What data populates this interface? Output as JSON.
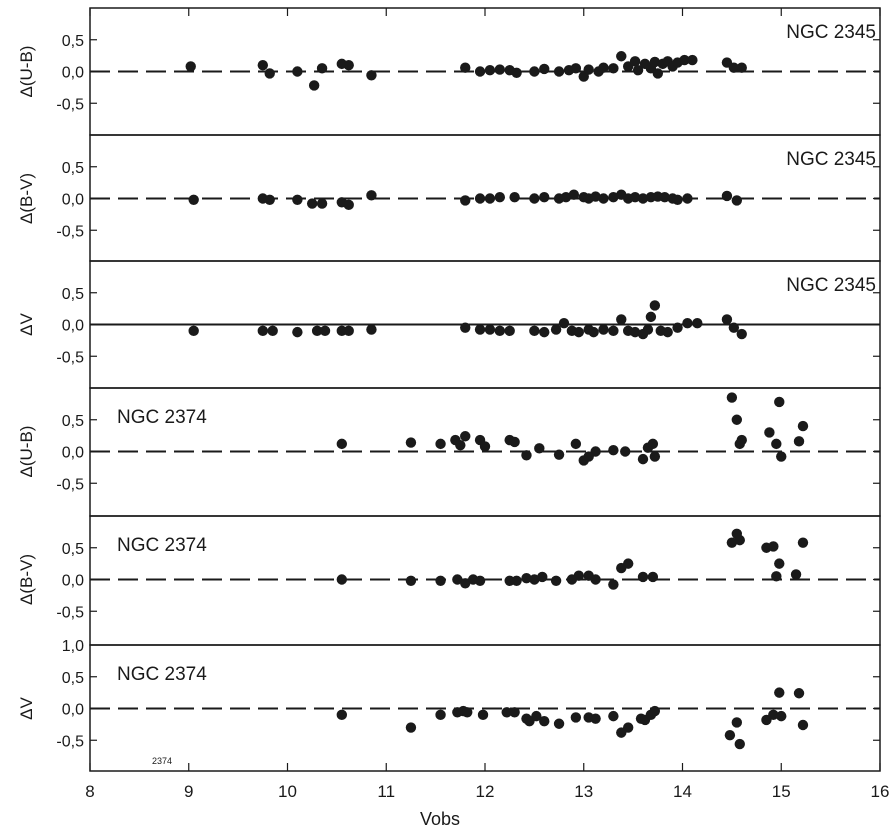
{
  "chart_data": {
    "type": "scatter",
    "x_axis": {
      "label": "Vobs",
      "ticks": [
        8,
        9,
        10,
        11,
        12,
        13,
        14,
        15,
        16
      ],
      "tick_labels": [
        "8",
        "9",
        "10",
        "11",
        "12",
        "13",
        "14",
        "15",
        "16"
      ],
      "range": [
        8,
        16
      ]
    },
    "y_tick_labels": [
      "0,5",
      "0,0",
      "-0,5"
    ],
    "top_tick_label_panel5": "1,0",
    "note_text": "2374",
    "panels": [
      {
        "id": "ngc2345-ub",
        "ylabel": "Δ(U-B)",
        "cluster": "NGC 2345",
        "label_side": "right",
        "ylim": [
          -1.0,
          1.0
        ],
        "reference_line": "dashed",
        "points": [
          [
            9.02,
            0.08
          ],
          [
            9.75,
            0.1
          ],
          [
            9.82,
            -0.03
          ],
          [
            10.1,
            0.0
          ],
          [
            10.27,
            -0.22
          ],
          [
            10.35,
            0.05
          ],
          [
            10.55,
            0.12
          ],
          [
            10.62,
            0.1
          ],
          [
            10.85,
            -0.06
          ],
          [
            11.8,
            0.06
          ],
          [
            11.95,
            0.0
          ],
          [
            12.05,
            0.02
          ],
          [
            12.15,
            0.03
          ],
          [
            12.25,
            0.02
          ],
          [
            12.32,
            -0.02
          ],
          [
            12.5,
            0.0
          ],
          [
            12.6,
            0.04
          ],
          [
            12.75,
            0.0
          ],
          [
            12.85,
            0.02
          ],
          [
            12.92,
            0.05
          ],
          [
            13.0,
            -0.08
          ],
          [
            13.05,
            0.03
          ],
          [
            13.15,
            0.0
          ],
          [
            13.2,
            0.06
          ],
          [
            13.3,
            0.05
          ],
          [
            13.38,
            0.24
          ],
          [
            13.45,
            0.08
          ],
          [
            13.52,
            0.16
          ],
          [
            13.55,
            0.02
          ],
          [
            13.62,
            0.12
          ],
          [
            13.68,
            0.05
          ],
          [
            13.72,
            0.15
          ],
          [
            13.75,
            -0.03
          ],
          [
            13.8,
            0.12
          ],
          [
            13.85,
            0.16
          ],
          [
            13.9,
            0.08
          ],
          [
            13.95,
            0.14
          ],
          [
            14.02,
            0.18
          ],
          [
            14.1,
            0.18
          ],
          [
            14.45,
            0.14
          ],
          [
            14.52,
            0.06
          ],
          [
            14.6,
            0.06
          ]
        ]
      },
      {
        "id": "ngc2345-bv",
        "ylabel": "Δ(B-V)",
        "cluster": "NGC 2345",
        "label_side": "right",
        "ylim": [
          -1.0,
          1.0
        ],
        "reference_line": "dashed",
        "points": [
          [
            9.05,
            -0.02
          ],
          [
            9.75,
            0.0
          ],
          [
            9.82,
            -0.02
          ],
          [
            10.1,
            -0.02
          ],
          [
            10.25,
            -0.08
          ],
          [
            10.35,
            -0.08
          ],
          [
            10.55,
            -0.06
          ],
          [
            10.62,
            -0.1
          ],
          [
            10.85,
            0.05
          ],
          [
            11.8,
            -0.03
          ],
          [
            11.95,
            0.0
          ],
          [
            12.05,
            0.0
          ],
          [
            12.15,
            0.02
          ],
          [
            12.3,
            0.02
          ],
          [
            12.5,
            0.0
          ],
          [
            12.6,
            0.02
          ],
          [
            12.75,
            0.0
          ],
          [
            12.82,
            0.02
          ],
          [
            12.9,
            0.06
          ],
          [
            13.0,
            0.02
          ],
          [
            13.05,
            0.0
          ],
          [
            13.12,
            0.03
          ],
          [
            13.2,
            0.0
          ],
          [
            13.3,
            0.02
          ],
          [
            13.38,
            0.06
          ],
          [
            13.45,
            0.0
          ],
          [
            13.52,
            0.02
          ],
          [
            13.6,
            0.0
          ],
          [
            13.68,
            0.02
          ],
          [
            13.75,
            0.03
          ],
          [
            13.82,
            0.02
          ],
          [
            13.9,
            0.0
          ],
          [
            13.95,
            -0.02
          ],
          [
            14.05,
            0.0
          ],
          [
            14.45,
            0.04
          ],
          [
            14.55,
            -0.03
          ]
        ]
      },
      {
        "id": "ngc2345-v",
        "ylabel": "ΔV",
        "cluster": "NGC 2345",
        "label_side": "right",
        "ylim": [
          -1.0,
          1.0
        ],
        "reference_line": "solid",
        "points": [
          [
            9.05,
            -0.1
          ],
          [
            9.75,
            -0.1
          ],
          [
            9.85,
            -0.1
          ],
          [
            10.1,
            -0.12
          ],
          [
            10.3,
            -0.1
          ],
          [
            10.38,
            -0.1
          ],
          [
            10.55,
            -0.1
          ],
          [
            10.62,
            -0.1
          ],
          [
            10.85,
            -0.08
          ],
          [
            11.8,
            -0.05
          ],
          [
            11.95,
            -0.08
          ],
          [
            12.05,
            -0.08
          ],
          [
            12.15,
            -0.1
          ],
          [
            12.25,
            -0.1
          ],
          [
            12.5,
            -0.1
          ],
          [
            12.6,
            -0.12
          ],
          [
            12.72,
            -0.08
          ],
          [
            12.8,
            0.02
          ],
          [
            12.88,
            -0.1
          ],
          [
            12.95,
            -0.12
          ],
          [
            13.05,
            -0.08
          ],
          [
            13.1,
            -0.12
          ],
          [
            13.2,
            -0.08
          ],
          [
            13.3,
            -0.1
          ],
          [
            13.38,
            0.08
          ],
          [
            13.45,
            -0.1
          ],
          [
            13.52,
            -0.12
          ],
          [
            13.6,
            -0.15
          ],
          [
            13.65,
            -0.08
          ],
          [
            13.68,
            0.12
          ],
          [
            13.72,
            0.3
          ],
          [
            13.78,
            -0.1
          ],
          [
            13.85,
            -0.12
          ],
          [
            13.95,
            -0.05
          ],
          [
            14.05,
            0.02
          ],
          [
            14.15,
            0.02
          ],
          [
            14.45,
            0.08
          ],
          [
            14.52,
            -0.05
          ],
          [
            14.6,
            -0.15
          ]
        ]
      },
      {
        "id": "ngc2374-ub",
        "ylabel": "Δ(U-B)",
        "cluster": "NGC 2374",
        "label_side": "left",
        "ylim": [
          -1.0,
          1.0
        ],
        "reference_line": "dashed",
        "points": [
          [
            10.55,
            0.12
          ],
          [
            11.25,
            0.14
          ],
          [
            11.55,
            0.12
          ],
          [
            11.7,
            0.18
          ],
          [
            11.75,
            0.1
          ],
          [
            11.8,
            0.24
          ],
          [
            11.95,
            0.18
          ],
          [
            12.0,
            0.08
          ],
          [
            12.25,
            0.18
          ],
          [
            12.3,
            0.15
          ],
          [
            12.42,
            -0.06
          ],
          [
            12.55,
            0.05
          ],
          [
            12.75,
            -0.05
          ],
          [
            12.92,
            0.12
          ],
          [
            13.0,
            -0.14
          ],
          [
            13.05,
            -0.08
          ],
          [
            13.12,
            0.0
          ],
          [
            13.3,
            0.02
          ],
          [
            13.42,
            0.0
          ],
          [
            13.6,
            -0.12
          ],
          [
            13.65,
            0.06
          ],
          [
            13.7,
            0.12
          ],
          [
            13.72,
            -0.08
          ],
          [
            14.5,
            0.85
          ],
          [
            14.55,
            0.5
          ],
          [
            14.58,
            0.12
          ],
          [
            14.6,
            0.18
          ],
          [
            14.88,
            0.3
          ],
          [
            14.95,
            0.12
          ],
          [
            15.0,
            -0.08
          ],
          [
            14.98,
            0.78
          ],
          [
            15.18,
            0.16
          ],
          [
            15.22,
            0.4
          ]
        ]
      },
      {
        "id": "ngc2374-bv",
        "ylabel": "Δ(B-V)",
        "cluster": "NGC 2374",
        "label_side": "left",
        "ylim": [
          -1.0,
          1.0
        ],
        "reference_line": "dashed",
        "points": [
          [
            10.55,
            0.0
          ],
          [
            11.25,
            -0.02
          ],
          [
            11.55,
            -0.02
          ],
          [
            11.72,
            0.0
          ],
          [
            11.8,
            -0.06
          ],
          [
            11.88,
            0.0
          ],
          [
            11.95,
            -0.02
          ],
          [
            12.25,
            -0.02
          ],
          [
            12.32,
            -0.02
          ],
          [
            12.42,
            0.02
          ],
          [
            12.5,
            0.0
          ],
          [
            12.58,
            0.04
          ],
          [
            12.72,
            -0.02
          ],
          [
            12.88,
            0.0
          ],
          [
            12.95,
            0.06
          ],
          [
            13.05,
            0.06
          ],
          [
            13.12,
            0.0
          ],
          [
            13.3,
            -0.08
          ],
          [
            13.38,
            0.18
          ],
          [
            13.45,
            0.25
          ],
          [
            13.6,
            0.04
          ],
          [
            13.7,
            0.04
          ],
          [
            14.5,
            0.58
          ],
          [
            14.55,
            0.72
          ],
          [
            14.58,
            0.62
          ],
          [
            14.85,
            0.5
          ],
          [
            14.92,
            0.52
          ],
          [
            14.95,
            0.05
          ],
          [
            14.98,
            0.25
          ],
          [
            15.15,
            0.08
          ],
          [
            15.22,
            0.58
          ]
        ]
      },
      {
        "id": "ngc2374-v",
        "ylabel": "ΔV",
        "cluster": "NGC 2374",
        "label_side": "left",
        "ylim": [
          -1.0,
          1.0
        ],
        "reference_line": "dashed",
        "points": [
          [
            10.55,
            -0.1
          ],
          [
            11.25,
            -0.3
          ],
          [
            11.55,
            -0.1
          ],
          [
            11.72,
            -0.06
          ],
          [
            11.78,
            -0.04
          ],
          [
            11.82,
            -0.06
          ],
          [
            11.98,
            -0.1
          ],
          [
            12.22,
            -0.06
          ],
          [
            12.3,
            -0.06
          ],
          [
            12.42,
            -0.16
          ],
          [
            12.45,
            -0.2
          ],
          [
            12.52,
            -0.12
          ],
          [
            12.6,
            -0.2
          ],
          [
            12.75,
            -0.24
          ],
          [
            12.92,
            -0.14
          ],
          [
            13.05,
            -0.14
          ],
          [
            13.12,
            -0.16
          ],
          [
            13.3,
            -0.12
          ],
          [
            13.38,
            -0.38
          ],
          [
            13.45,
            -0.3
          ],
          [
            13.58,
            -0.16
          ],
          [
            13.62,
            -0.18
          ],
          [
            13.68,
            -0.1
          ],
          [
            13.72,
            -0.04
          ],
          [
            14.48,
            -0.42
          ],
          [
            14.55,
            -0.22
          ],
          [
            14.58,
            -0.56
          ],
          [
            14.85,
            -0.18
          ],
          [
            14.92,
            -0.1
          ],
          [
            14.98,
            0.25
          ],
          [
            15.0,
            -0.12
          ],
          [
            15.18,
            0.24
          ],
          [
            15.22,
            -0.26
          ]
        ]
      }
    ]
  }
}
